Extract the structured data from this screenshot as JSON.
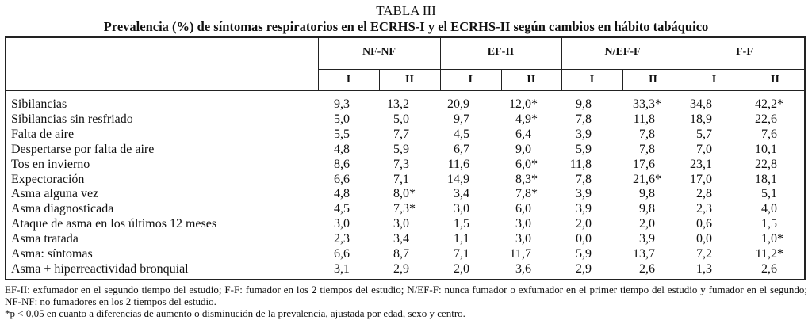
{
  "title": "TABLA III",
  "subtitle": "Prevalencia (%) de síntomas respiratorios en el ECRHS-I y el ECRHS-II según cambios en hábito tabáquico",
  "groups": [
    "NF-NF",
    "EF-II",
    "N/EF-F",
    "F-F"
  ],
  "subheaders": [
    "I",
    "II",
    "I",
    "II",
    "I",
    "II",
    "I",
    "II"
  ],
  "rows": [
    {
      "label": "Sibilancias",
      "values": [
        "9,3",
        "13,2",
        "20,9",
        "12,0*",
        "9,8",
        "33,3*",
        "34,8",
        "42,2*"
      ]
    },
    {
      "label": "Sibilancias sin resfriado",
      "values": [
        "5,0",
        "5,0",
        "9,7",
        "4,9*",
        "7,8",
        "11,8",
        "18,9",
        "22,6"
      ]
    },
    {
      "label": "Falta de aire",
      "values": [
        "5,5",
        "7,7",
        "4,5",
        "6,4",
        "3,9",
        "7,8",
        "5,7",
        "7,6"
      ]
    },
    {
      "label": "Despertarse por falta de aire",
      "values": [
        "4,8",
        "5,9",
        "6,7",
        "9,0",
        "5,9",
        "7,8",
        "7,0",
        "10,1"
      ]
    },
    {
      "label": "Tos en invierno",
      "values": [
        "8,6",
        "7,3",
        "11,6",
        "6,0*",
        "11,8",
        "17,6",
        "23,1",
        "22,8"
      ]
    },
    {
      "label": "Expectoración",
      "values": [
        "6,6",
        "7,1",
        "14,9",
        "8,3*",
        "7,8",
        "21,6*",
        "17,0",
        "18,1"
      ]
    },
    {
      "label": "Asma alguna vez",
      "values": [
        "4,8",
        "8,0*",
        "3,4",
        "7,8*",
        "3,9",
        "9,8",
        "2,8",
        "5,1"
      ]
    },
    {
      "label": "Asma diagnosticada",
      "values": [
        "4,5",
        "7,3*",
        "3,0",
        "6,0",
        "3,9",
        "9,8",
        "2,3",
        "4,0"
      ]
    },
    {
      "label": "Ataque de asma en los últimos 12 meses",
      "values": [
        "3,0",
        "3,0",
        "1,5",
        "3,0",
        "2,0",
        "2,0",
        "0,6",
        "1,5"
      ]
    },
    {
      "label": "Asma tratada",
      "values": [
        "2,3",
        "3,4",
        "1,1",
        "3,0",
        "0,0",
        "3,9",
        "0,0",
        "1,0*"
      ]
    },
    {
      "label": "Asma: síntomas",
      "values": [
        "6,6",
        "8,7",
        "7,1",
        "11,7",
        "5,9",
        "13,7",
        "7,2",
        "11,2*"
      ]
    },
    {
      "label": "Asma + hiperreactividad bronquial",
      "values": [
        "3,1",
        "2,9",
        "2,0",
        "3,6",
        "2,9",
        "2,6",
        "1,3",
        "2,6"
      ]
    }
  ],
  "footnotes": [
    "EF-II: exfumador en el segundo tiempo del estudio; F-F: fumador en los 2 tiempos del estudio; N/EF-F: nunca fumador o exfumador en el primer tiempo del estudio y fumador en el segundo; NF-NF: no fumadores en los 2 tiempos del estudio.",
    "*p < 0,05 en cuanto a diferencias de aumento o disminución de la prevalencia, ajustada por edad, sexo y centro."
  ]
}
